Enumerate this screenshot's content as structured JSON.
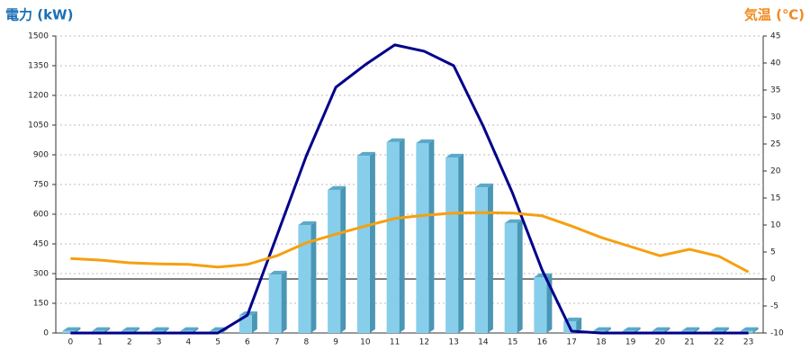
{
  "chart_data": {
    "type": "bar",
    "y_label": "電力 (kW)",
    "y2_label": "気温 (℃)",
    "categories": [
      "0",
      "1",
      "2",
      "3",
      "4",
      "5",
      "6",
      "7",
      "8",
      "9",
      "10",
      "11",
      "12",
      "13",
      "14",
      "15",
      "16",
      "17",
      "18",
      "19",
      "20",
      "21",
      "22",
      "23"
    ],
    "ylim": [
      0,
      1500
    ],
    "yticks": [
      0,
      150,
      300,
      450,
      600,
      750,
      900,
      1050,
      1200,
      1350,
      1500
    ],
    "y2lim": [
      -10,
      45
    ],
    "y2ticks": [
      -10,
      -5,
      0,
      5,
      10,
      15,
      20,
      25,
      30,
      35,
      40,
      45
    ],
    "grid": true,
    "series": [
      {
        "type": "bar",
        "color": "#87ceeb",
        "values": [
          10,
          10,
          10,
          10,
          10,
          10,
          90,
          295,
          545,
          723,
          895,
          964,
          959,
          886,
          736,
          555,
          282,
          59,
          10,
          10,
          10,
          10,
          10,
          10
        ]
      },
      {
        "type": "line",
        "color": "#00008b",
        "values": [
          0,
          0,
          0,
          0,
          0,
          0,
          90,
          491,
          895,
          1241,
          1355,
          1455,
          1423,
          1350,
          1045,
          705,
          318,
          9,
          0,
          0,
          0,
          0,
          0,
          0
        ]
      },
      {
        "type": "line",
        "axis": "y2",
        "color": "#f5a010",
        "values": [
          3.8,
          3.5,
          3.0,
          2.8,
          2.7,
          2.2,
          2.7,
          4.3,
          6.7,
          8.3,
          9.8,
          11.2,
          11.8,
          12.2,
          12.3,
          12.2,
          11.7,
          9.8,
          7.7,
          6.0,
          4.3,
          5.5,
          4.2,
          1.3
        ]
      }
    ]
  }
}
